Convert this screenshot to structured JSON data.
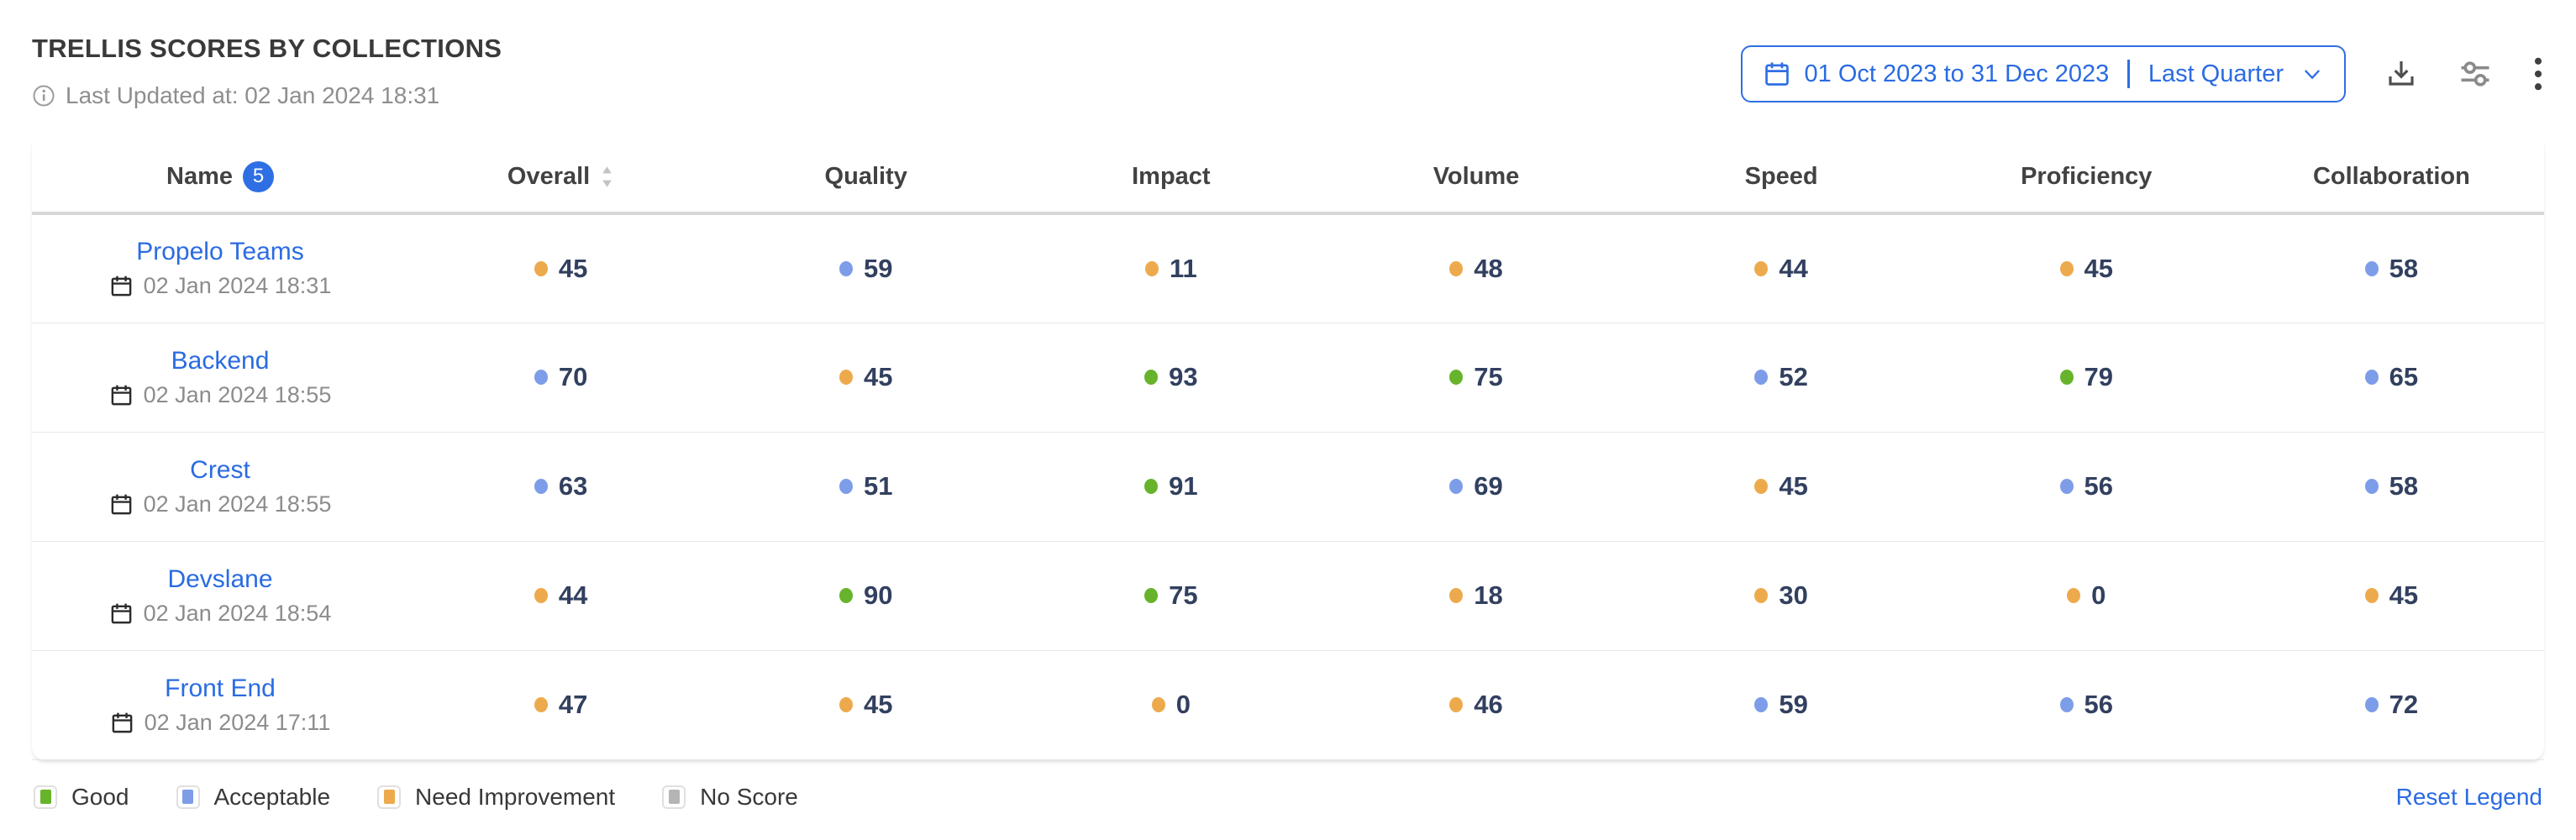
{
  "title": "TRELLIS SCORES BY COLLECTIONS",
  "last_updated": "Last Updated at: 02 Jan 2024 18:31",
  "toolbar": {
    "date_range": "01 Oct 2023 to 31 Dec 2023",
    "date_preset": "Last Quarter",
    "icons": {
      "calendar": "calendar-icon",
      "chevron": "chevron-down-icon",
      "download": "download-icon",
      "settings": "sliders-icon",
      "more": "kebab-menu-icon"
    }
  },
  "table": {
    "columns": [
      "Name",
      "Overall",
      "Quality",
      "Impact",
      "Volume",
      "Speed",
      "Proficiency",
      "Collaboration"
    ],
    "name_count_badge": "5",
    "rows": [
      {
        "name": "Propelo Teams",
        "date": "02 Jan 2024 18:31",
        "scores": [
          {
            "value": "45",
            "level": "need_improvement"
          },
          {
            "value": "59",
            "level": "acceptable"
          },
          {
            "value": "11",
            "level": "need_improvement"
          },
          {
            "value": "48",
            "level": "need_improvement"
          },
          {
            "value": "44",
            "level": "need_improvement"
          },
          {
            "value": "45",
            "level": "need_improvement"
          },
          {
            "value": "58",
            "level": "acceptable"
          }
        ]
      },
      {
        "name": "Backend",
        "date": "02 Jan 2024 18:55",
        "scores": [
          {
            "value": "70",
            "level": "acceptable"
          },
          {
            "value": "45",
            "level": "need_improvement"
          },
          {
            "value": "93",
            "level": "good"
          },
          {
            "value": "75",
            "level": "good"
          },
          {
            "value": "52",
            "level": "acceptable"
          },
          {
            "value": "79",
            "level": "good"
          },
          {
            "value": "65",
            "level": "acceptable"
          }
        ]
      },
      {
        "name": "Crest",
        "date": "02 Jan 2024 18:55",
        "scores": [
          {
            "value": "63",
            "level": "acceptable"
          },
          {
            "value": "51",
            "level": "acceptable"
          },
          {
            "value": "91",
            "level": "good"
          },
          {
            "value": "69",
            "level": "acceptable"
          },
          {
            "value": "45",
            "level": "need_improvement"
          },
          {
            "value": "56",
            "level": "acceptable"
          },
          {
            "value": "58",
            "level": "acceptable"
          }
        ]
      },
      {
        "name": "Devslane",
        "date": "02 Jan 2024 18:54",
        "scores": [
          {
            "value": "44",
            "level": "need_improvement"
          },
          {
            "value": "90",
            "level": "good"
          },
          {
            "value": "75",
            "level": "good"
          },
          {
            "value": "18",
            "level": "need_improvement"
          },
          {
            "value": "30",
            "level": "need_improvement"
          },
          {
            "value": "0",
            "level": "need_improvement"
          },
          {
            "value": "45",
            "level": "need_improvement"
          }
        ]
      },
      {
        "name": "Front End",
        "date": "02 Jan 2024 17:11",
        "scores": [
          {
            "value": "47",
            "level": "need_improvement"
          },
          {
            "value": "45",
            "level": "need_improvement"
          },
          {
            "value": "0",
            "level": "need_improvement"
          },
          {
            "value": "46",
            "level": "need_improvement"
          },
          {
            "value": "59",
            "level": "acceptable"
          },
          {
            "value": "56",
            "level": "acceptable"
          },
          {
            "value": "72",
            "level": "acceptable"
          }
        ]
      }
    ]
  },
  "legend": {
    "items": [
      {
        "label": "Good",
        "level": "good"
      },
      {
        "label": "Acceptable",
        "level": "acceptable"
      },
      {
        "label": "Need Improvement",
        "level": "need_improvement"
      },
      {
        "label": "No Score",
        "level": "no_score"
      }
    ],
    "reset_label": "Reset Legend"
  },
  "colors": {
    "good": "#67B42C",
    "acceptable": "#7D9DE8",
    "need_improvement": "#EDAA4D",
    "no_score": "#B5B5B5",
    "accent_blue": "#2F6FE4",
    "score_text": "#32405F"
  }
}
